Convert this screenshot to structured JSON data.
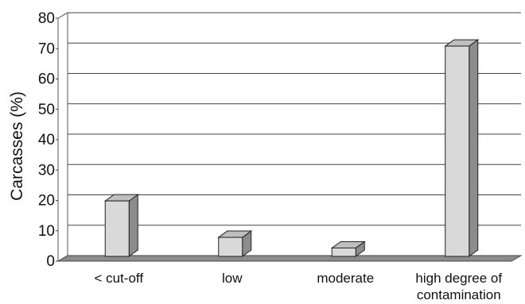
{
  "chart_data": {
    "type": "bar",
    "categories": [
      "< cut-off",
      "low",
      "moderate",
      "high degree of contamination"
    ],
    "category_label_lines": [
      [
        "< cut-off"
      ],
      [
        "low"
      ],
      [
        "moderate"
      ],
      [
        "high degree of",
        "contamination"
      ]
    ],
    "values": [
      18,
      6,
      2.5,
      69
    ],
    "title": "",
    "xlabel": "",
    "ylabel": "Carcasses (%)",
    "ylim": [
      0,
      80
    ],
    "yticks": [
      0,
      10,
      20,
      30,
      40,
      50,
      60,
      70,
      80
    ],
    "grid": true,
    "legend": "none",
    "bar_color": "#d9d9d9",
    "bar_side_color": "#8c8c8c",
    "bar_top_color": "#bfbfbf",
    "floor_color": "#8c8c8c"
  }
}
